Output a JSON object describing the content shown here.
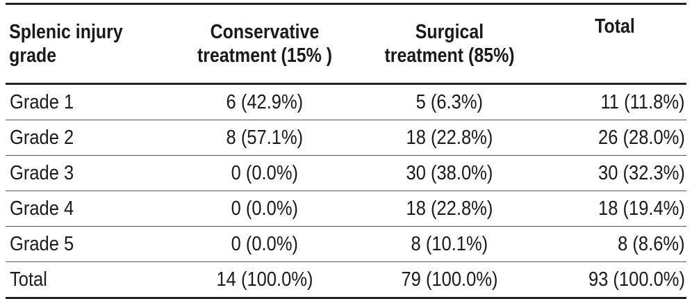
{
  "table": {
    "headers": [
      "Splenic injury grade",
      "Conservative treatment (15% )",
      "Surgical treatment (85%)",
      "Total"
    ],
    "header_lines": [
      [
        "Splenic injury",
        "grade"
      ],
      [
        "Conservative",
        "treatment (15% )"
      ],
      [
        "Surgical",
        "treatment (85%)"
      ],
      [
        "Total"
      ]
    ],
    "rows": [
      [
        "Grade 1",
        "6 (42.9%)",
        "5 (6.3%)",
        "11 (11.8%)"
      ],
      [
        "Grade 2",
        "8 (57.1%)",
        "18 (22.8%)",
        "26 (28.0%)"
      ],
      [
        "Grade 3",
        "0 (0.0%)",
        "30 (38.0%)",
        "30 (32.3%)"
      ],
      [
        "Grade 4",
        "0 (0.0%)",
        "18 (22.8%)",
        "18 (19.4%)"
      ],
      [
        "Grade 5",
        "0 (0.0%)",
        "8 (10.1%)",
        "8 (8.6%)"
      ],
      [
        "Total",
        "14 (100.0%)",
        "79 (100.0%)",
        "93 (100.0%)"
      ]
    ]
  }
}
